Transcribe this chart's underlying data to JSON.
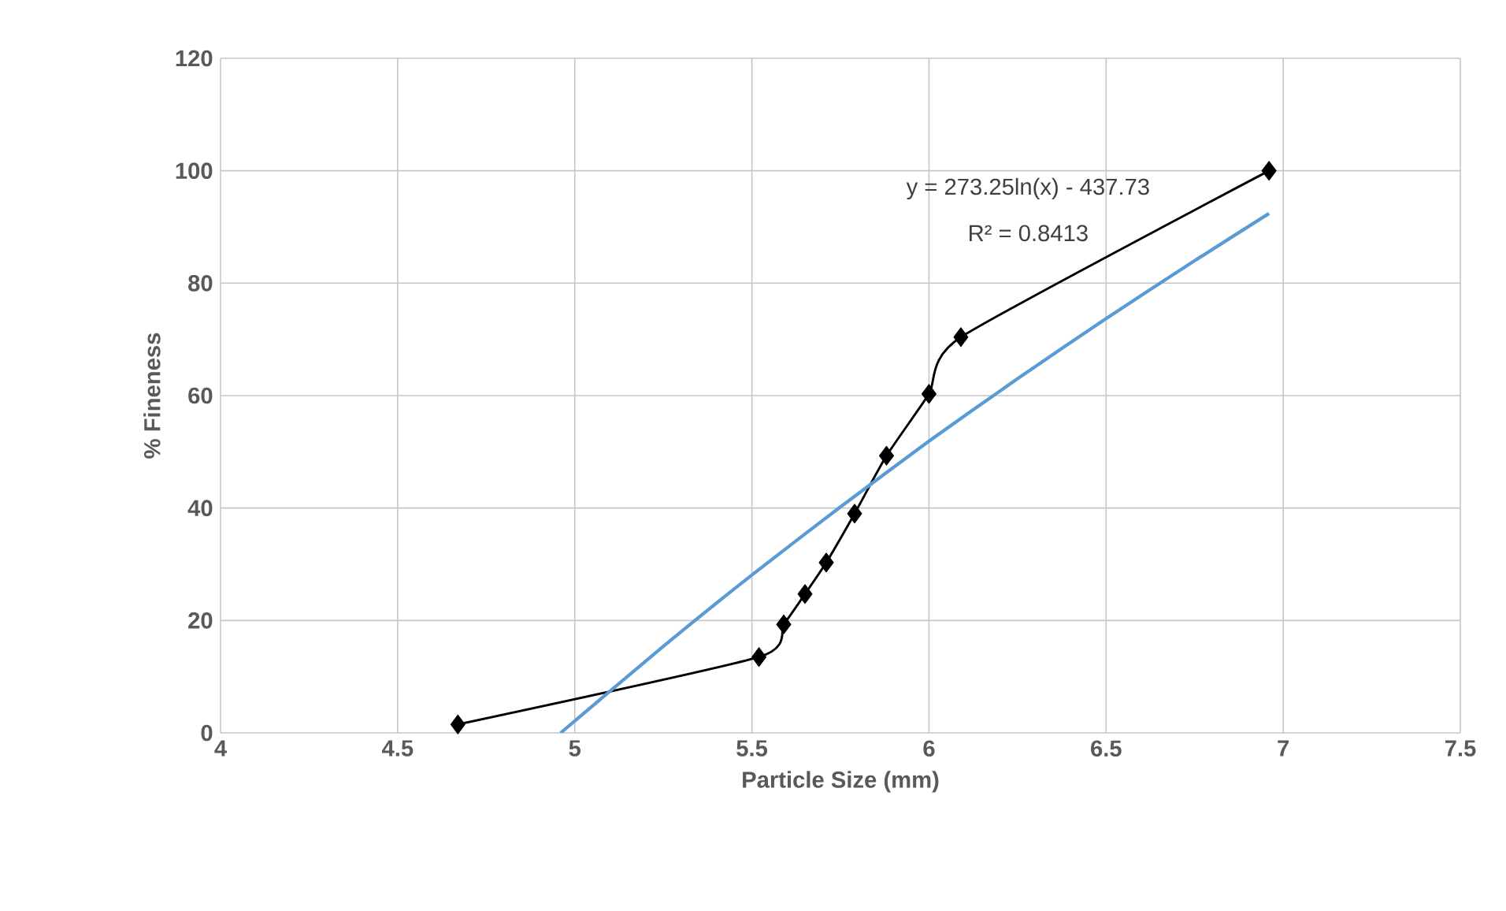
{
  "chart_data": {
    "type": "line",
    "xlabel": "Particle Size (mm)",
    "ylabel": "% Fineness",
    "xlim": [
      4,
      7.5
    ],
    "xticks": [
      4,
      4.5,
      5,
      5.5,
      6,
      6.5,
      7,
      7.5
    ],
    "ylim": [
      0,
      120
    ],
    "yticks": [
      0,
      20,
      40,
      60,
      80,
      100,
      120
    ],
    "grid": true,
    "series": [
      {
        "color": "#000000",
        "marker": "diamond",
        "x": [
          4.67,
          5.52,
          5.59,
          5.65,
          5.71,
          5.79,
          5.88,
          6.0,
          6.09,
          6.96
        ],
        "values": [
          1.5,
          13.5,
          19.3,
          24.7,
          30.3,
          39.0,
          49.3,
          60.3,
          70.4,
          100
        ]
      },
      {
        "type": "line",
        "color": "#5b9bd5",
        "marker": "none",
        "x": [
          4.96,
          5.25,
          5.5,
          5.75,
          6.0,
          6.25,
          6.5,
          6.75,
          6.96
        ],
        "values": [
          0,
          15.4,
          28.1,
          40.2,
          51.9,
          63.0,
          73.7,
          84.0,
          92.4
        ]
      }
    ],
    "annotations": [
      "y = 273.25ln(x) - 437.73",
      "R² = 0.8413"
    ]
  }
}
